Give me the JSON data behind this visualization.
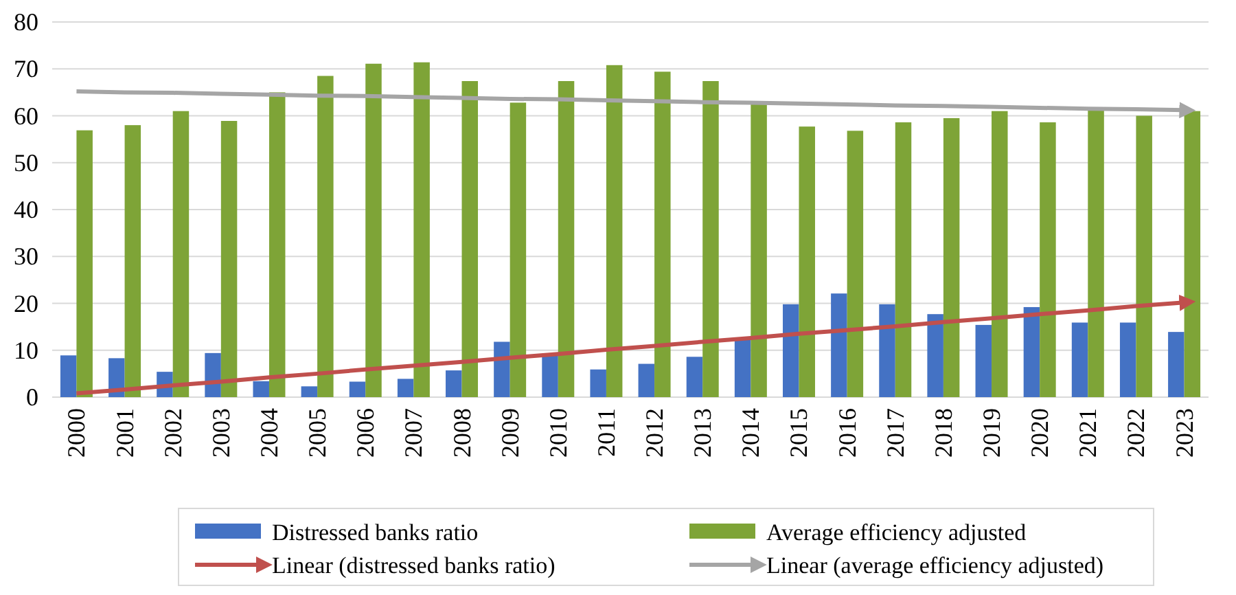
{
  "chart_data": {
    "type": "bar",
    "categories": [
      "2000",
      "2001",
      "2002",
      "2003",
      "2004",
      "2005",
      "2006",
      "2007",
      "2008",
      "2009",
      "2010",
      "2011",
      "2012",
      "2013",
      "2014",
      "2015",
      "2016",
      "2017",
      "2018",
      "2019",
      "2020",
      "2021",
      "2022",
      "2023"
    ],
    "series": [
      {
        "name": "Distressed banks ratio",
        "color": "#4472c4",
        "values": [
          8.9,
          8.3,
          5.4,
          9.4,
          3.4,
          2.3,
          3.3,
          3.9,
          5.7,
          11.8,
          9.3,
          5.9,
          7.1,
          8.6,
          12.6,
          19.8,
          22.1,
          19.8,
          17.7,
          15.4,
          19.2,
          15.9,
          15.9,
          13.9
        ]
      },
      {
        "name": "Average efficiency adjusted",
        "color": "#7ea437",
        "values": [
          56.9,
          58,
          61,
          58.9,
          65,
          68.5,
          71.1,
          71.4,
          67.4,
          62.8,
          67.4,
          70.8,
          69.4,
          67.4,
          62.8,
          57.7,
          56.8,
          58.6,
          59.5,
          61,
          58.6,
          61.5,
          60,
          61
        ]
      },
      {
        "name": "Linear (distressed banks ratio)",
        "type": "line",
        "color": "#c0504d",
        "values": [
          0.8,
          1.6,
          2.5,
          3.3,
          4.2,
          5.0,
          5.9,
          6.7,
          7.5,
          8.4,
          9.2,
          10.1,
          10.9,
          11.8,
          12.6,
          13.5,
          14.3,
          15.1,
          16.0,
          16.8,
          17.7,
          18.5,
          19.4,
          20.2
        ]
      },
      {
        "name": "Linear (average efficiency adjusted)",
        "type": "line",
        "color": "#a5a5a5",
        "values": [
          65.2,
          65.0,
          64.9,
          64.7,
          64.5,
          64.3,
          64.2,
          64.0,
          63.8,
          63.6,
          63.5,
          63.3,
          63.1,
          62.9,
          62.8,
          62.6,
          62.4,
          62.2,
          62.1,
          61.9,
          61.7,
          61.5,
          61.4,
          61.2
        ]
      }
    ],
    "ylim": [
      0,
      80
    ],
    "yticks": [
      0,
      10,
      20,
      30,
      40,
      50,
      60,
      70,
      80
    ],
    "grid": "y",
    "legend": "bottom"
  }
}
